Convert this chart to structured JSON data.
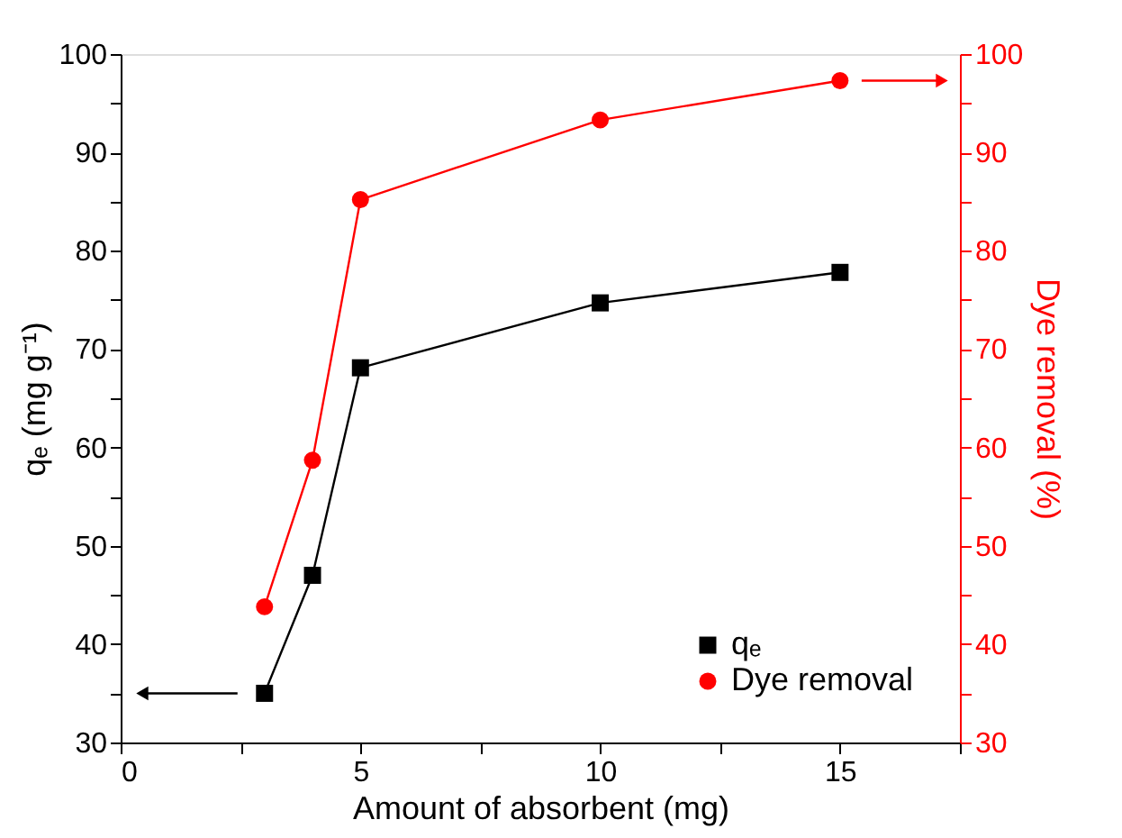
{
  "chart_data": {
    "type": "line",
    "xlabel": "Amount of absorbent (mg)",
    "ylabel": "qₑ (mg g⁻¹)",
    "y2label": "Dye removal (%)",
    "x": [
      3,
      4,
      5,
      10,
      15
    ],
    "series": [
      {
        "name": "qₑ",
        "color": "#000000",
        "marker": "square",
        "values": [
          35,
          47,
          68.1,
          74.7,
          77.8
        ]
      },
      {
        "name": "Dye removal",
        "color": "#ff0000",
        "marker": "circle",
        "axis": "y2",
        "values": [
          43.8,
          58.7,
          85.2,
          93.3,
          97.3
        ]
      }
    ],
    "xlim": [
      0,
      17.5
    ],
    "xticks": [
      0,
      {
        "value": 2.5,
        "label": null
      },
      5,
      {
        "value": 7.5,
        "label": null
      },
      10,
      {
        "value": 12.5,
        "label": null
      },
      15,
      {
        "value": 17.5,
        "label": null
      }
    ],
    "ylim": [
      30,
      100
    ],
    "yticks": [
      30,
      {
        "value": 35,
        "label": null
      },
      40,
      {
        "value": 45,
        "label": null
      },
      50,
      {
        "value": 55,
        "label": null
      },
      60,
      {
        "value": 65,
        "label": null
      },
      70,
      {
        "value": 75,
        "label": null
      },
      80,
      {
        "value": 85,
        "label": null
      },
      90,
      {
        "value": 95,
        "label": null
      },
      100
    ],
    "y2lim": [
      30,
      100
    ],
    "y2ticks": [
      30,
      {
        "value": 35,
        "label": null
      },
      40,
      {
        "value": 45,
        "label": null
      },
      50,
      {
        "value": 55,
        "label": null
      },
      60,
      {
        "value": 65,
        "label": null
      },
      70,
      {
        "value": 75,
        "label": null
      },
      80,
      {
        "value": 85,
        "label": null
      },
      90,
      {
        "value": 95,
        "label": null
      },
      100
    ],
    "legend": "bottom right",
    "grid": false
  }
}
